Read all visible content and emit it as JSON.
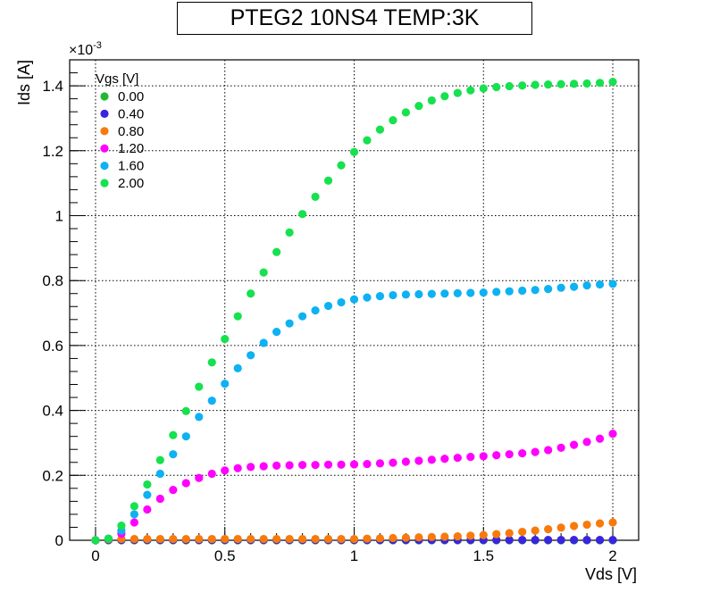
{
  "chart_data": {
    "type": "scatter",
    "title": "PTEG2 10NS4 TEMP:3K",
    "xlabel": "Vds [V]",
    "ylabel": "Ids [A]",
    "y_multiplier_label": "×10",
    "y_multiplier_exp": "-3",
    "xlim": [
      -0.1,
      2.1
    ],
    "ylim": [
      0,
      1.48
    ],
    "grid": true,
    "legend_position": "top-left",
    "legend_title": "Vgs [V]",
    "x_ticks": [
      {
        "value": 0,
        "label": "0"
      },
      {
        "value": 0.5,
        "label": "0.5"
      },
      {
        "value": 1,
        "label": "1"
      },
      {
        "value": 1.5,
        "label": "1.5"
      },
      {
        "value": 2,
        "label": "2"
      }
    ],
    "y_ticks": [
      {
        "value": 0,
        "label": "0"
      },
      {
        "value": 0.2,
        "label": "0.2"
      },
      {
        "value": 0.4,
        "label": "0.4"
      },
      {
        "value": 0.6,
        "label": "0.6"
      },
      {
        "value": 0.8,
        "label": "0.8"
      },
      {
        "value": 1.0,
        "label": "1"
      },
      {
        "value": 1.2,
        "label": "1.2"
      },
      {
        "value": 1.4,
        "label": "1.4"
      }
    ],
    "x": [
      0,
      0.05,
      0.1,
      0.15,
      0.2,
      0.25,
      0.3,
      0.35,
      0.4,
      0.45,
      0.5,
      0.55,
      0.6,
      0.65,
      0.7,
      0.75,
      0.8,
      0.85,
      0.9,
      0.95,
      1.0,
      1.05,
      1.1,
      1.15,
      1.2,
      1.25,
      1.3,
      1.35,
      1.4,
      1.45,
      1.5,
      1.55,
      1.6,
      1.65,
      1.7,
      1.75,
      1.8,
      1.85,
      1.9,
      1.95,
      2.0
    ],
    "series": [
      {
        "name": "0.00",
        "color": "#21b831",
        "values": [
          0,
          0,
          0,
          0,
          0,
          0,
          0,
          0,
          0,
          0,
          0,
          0,
          0,
          0,
          0,
          0,
          0,
          0,
          0,
          0,
          0,
          0,
          0,
          0,
          0,
          0,
          0,
          0,
          0,
          0,
          0,
          0,
          0,
          0,
          0,
          0,
          0,
          0,
          0,
          0,
          0
        ]
      },
      {
        "name": "0.40",
        "color": "#3b24e0",
        "values": [
          0,
          0.001,
          0.001,
          0.001,
          0.001,
          0.001,
          0.001,
          0.001,
          0.001,
          0.001,
          0.001,
          0.001,
          0.001,
          0.001,
          0.001,
          0.001,
          0.001,
          0.001,
          0.001,
          0.001,
          0.001,
          0.001,
          0.001,
          0.001,
          0.001,
          0.001,
          0.001,
          0.001,
          0.001,
          0.001,
          0.001,
          0.001,
          0.001,
          0.001,
          0.001,
          0.001,
          0.001,
          0.001,
          0.001,
          0.001,
          0.001
        ]
      },
      {
        "name": "0.80",
        "color": "#f87a0c",
        "values": [
          0,
          0.003,
          0.004,
          0.004,
          0.004,
          0.004,
          0.004,
          0.004,
          0.004,
          0.004,
          0.004,
          0.004,
          0.004,
          0.004,
          0.004,
          0.004,
          0.004,
          0.004,
          0.004,
          0.004,
          0.004,
          0.005,
          0.006,
          0.007,
          0.008,
          0.009,
          0.01,
          0.011,
          0.012,
          0.014,
          0.016,
          0.019,
          0.022,
          0.026,
          0.03,
          0.034,
          0.039,
          0.044,
          0.048,
          0.052,
          0.055
        ]
      },
      {
        "name": "1.20",
        "color": "#ff00ff",
        "values": [
          0,
          0.005,
          0.02,
          0.055,
          0.095,
          0.128,
          0.155,
          0.176,
          0.192,
          0.205,
          0.215,
          0.222,
          0.226,
          0.228,
          0.23,
          0.231,
          0.232,
          0.232,
          0.233,
          0.233,
          0.234,
          0.235,
          0.237,
          0.239,
          0.242,
          0.245,
          0.248,
          0.251,
          0.254,
          0.257,
          0.259,
          0.262,
          0.265,
          0.268,
          0.272,
          0.278,
          0.285,
          0.294,
          0.303,
          0.313,
          0.328
        ]
      },
      {
        "name": "1.60",
        "color": "#0eb2f2",
        "values": [
          0,
          0.005,
          0.03,
          0.08,
          0.14,
          0.205,
          0.265,
          0.32,
          0.38,
          0.43,
          0.482,
          0.53,
          0.57,
          0.608,
          0.642,
          0.668,
          0.69,
          0.708,
          0.722,
          0.733,
          0.742,
          0.748,
          0.752,
          0.755,
          0.757,
          0.758,
          0.759,
          0.76,
          0.761,
          0.762,
          0.763,
          0.765,
          0.767,
          0.769,
          0.771,
          0.774,
          0.778,
          0.781,
          0.785,
          0.788,
          0.79
        ]
      },
      {
        "name": "2.00",
        "color": "#16e14e",
        "values": [
          0,
          0.005,
          0.045,
          0.105,
          0.172,
          0.247,
          0.324,
          0.398,
          0.473,
          0.548,
          0.62,
          0.69,
          0.76,
          0.825,
          0.888,
          0.948,
          1.005,
          1.058,
          1.108,
          1.155,
          1.196,
          1.232,
          1.265,
          1.294,
          1.318,
          1.338,
          1.355,
          1.368,
          1.378,
          1.386,
          1.392,
          1.396,
          1.399,
          1.401,
          1.403,
          1.404,
          1.405,
          1.406,
          1.407,
          1.409,
          1.412
        ]
      }
    ]
  }
}
